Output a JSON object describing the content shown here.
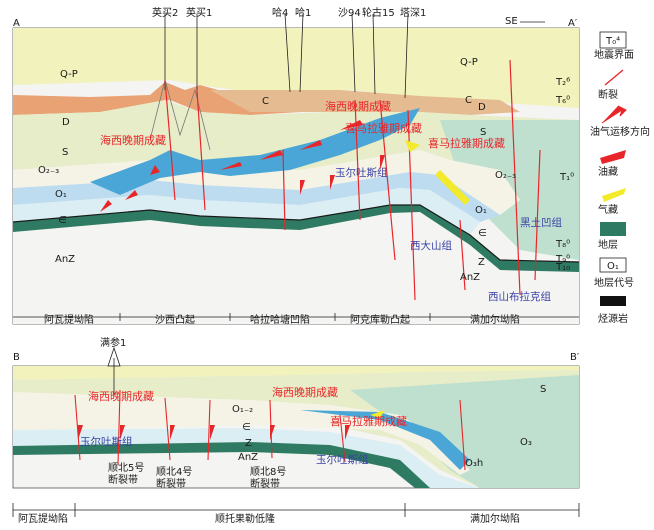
{
  "sectionA": {
    "label_left": "A",
    "label_right": "A′",
    "direction": "SE",
    "wells": [
      {
        "name": "英买2"
      },
      {
        "name": "英买1"
      },
      {
        "name": "哈4"
      },
      {
        "name": "哈1"
      },
      {
        "name": "沙94"
      },
      {
        "name": "轮古15"
      },
      {
        "name": "塔深1"
      }
    ],
    "strata": {
      "qp_left": "Q-P",
      "qp_right": "Q-P",
      "d": "D",
      "d_right": "D",
      "s": "S",
      "s_right": "S",
      "c": "C",
      "c_right": "C",
      "o23": "O₂₋₃",
      "o23_right": "O₂₋₃",
      "o1": "O₁",
      "o1_right": "O₁",
      "cam": "∈",
      "cam_right": "∈",
      "anz": "AnZ",
      "anz_right": "AnZ",
      "z": "Z",
      "t1": "T₁⁰",
      "t2": "T₂⁶",
      "t3": "T₆⁰",
      "t4": "T₈⁰",
      "t5": "T₉⁰",
      "t6": "T₁₀"
    },
    "reservoirs": [
      {
        "text": "海西晚期成藏"
      },
      {
        "text": "海西晚期成藏"
      },
      {
        "text": "喜马拉雅期成藏"
      },
      {
        "text": "喜马拉雅期成藏"
      }
    ],
    "formations": [
      {
        "text": "玉尔吐斯组"
      },
      {
        "text": "黑土凹组"
      },
      {
        "text": "西大山组"
      },
      {
        "text": "西山布拉克组"
      }
    ],
    "units": [
      {
        "text": "阿瓦提坳陷"
      },
      {
        "text": "沙西凸起"
      },
      {
        "text": "哈拉哈塘凹陷"
      },
      {
        "text": "阿克库勒凸起"
      },
      {
        "text": "满加尔坳陷"
      }
    ]
  },
  "sectionB": {
    "label_left": "B",
    "label_right": "B′",
    "well": "满参1",
    "strata": {
      "s": "S",
      "o3": "O₃",
      "o12": "O₁₋₂",
      "cam": "∈",
      "z": "Z",
      "anz": "AnZ",
      "oh": "O₃h"
    },
    "reservoirs": [
      {
        "text": "海西晚期成藏"
      },
      {
        "text": "海西晚期成藏"
      },
      {
        "text": "喜马拉雅期成藏"
      }
    ],
    "formations": [
      {
        "text": "玉尔吐斯组"
      },
      {
        "text": "玉尔吐斯组"
      }
    ],
    "faults": [
      {
        "line1": "顺北5号",
        "line2": "断裂带"
      },
      {
        "line1": "顺北4号",
        "line2": "断裂带"
      },
      {
        "line1": "顺北8号",
        "line2": "断裂带"
      }
    ],
    "units": [
      {
        "text": "阿瓦提坳陷"
      },
      {
        "text": "顺托果勒低隆"
      },
      {
        "text": "满加尔坳陷"
      }
    ]
  },
  "legend": [
    {
      "label": "地震界面",
      "symbol": "T₀⁴"
    },
    {
      "label": "断裂"
    },
    {
      "label": "油气运移方向"
    },
    {
      "label": "油藏"
    },
    {
      "label": "气藏"
    },
    {
      "label": "地层"
    },
    {
      "label": "地层代号",
      "symbol": "O₁"
    },
    {
      "label": "烃源岩"
    }
  ],
  "colors": {
    "qp": "#f2f2bc",
    "d": "#e9a274",
    "c": "#e5bc91",
    "s": "#e6edc8",
    "o23": "#f4f3e6",
    "o1": "#bedcf0",
    "oil": "#4aa6d6",
    "cam": "#dbeef3",
    "source": "#2f7a63",
    "anz": "#f3f3f3",
    "fault": "#e8262a",
    "gas": "#f3ea2a",
    "green_s": "#bfe0cf"
  }
}
